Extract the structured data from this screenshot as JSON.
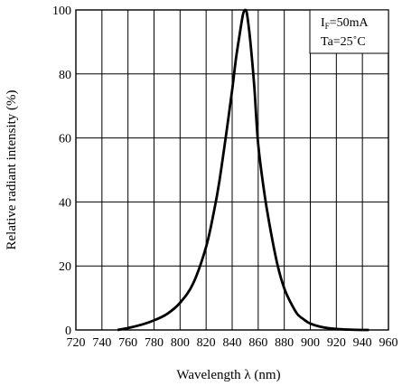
{
  "chart_data": {
    "type": "line",
    "title": "",
    "xlabel": "Wavelength  λ  (nm)",
    "ylabel": "Relative radiant intensity (%)",
    "xlim": [
      720,
      960
    ],
    "ylim": [
      0,
      100
    ],
    "x_ticks": [
      720,
      740,
      760,
      780,
      800,
      820,
      840,
      860,
      880,
      900,
      920,
      940,
      960
    ],
    "y_ticks": [
      0,
      20,
      40,
      60,
      80,
      100
    ],
    "grid": true,
    "legend": {
      "placement": "top-right",
      "line1_main": "I",
      "line1_sub": "F",
      "line1_rest": "=50mA",
      "line2": "Ta=25˚C"
    },
    "series": [
      {
        "x": [
          752,
          760,
          770,
          780,
          790,
          800,
          810,
          820,
          826,
          830,
          835,
          840,
          843,
          846,
          848,
          849,
          850,
          851,
          852,
          854,
          857,
          860,
          865,
          870,
          875,
          880,
          885,
          890,
          895,
          900,
          910,
          920,
          930,
          940,
          945
        ],
        "y": [
          0,
          0.6,
          1.6,
          3,
          5,
          8.5,
          14.5,
          26,
          37,
          46,
          60,
          75,
          85,
          93,
          98,
          99.5,
          100,
          99.5,
          97,
          90,
          76,
          58,
          42,
          30,
          20,
          13,
          8.5,
          5,
          3.3,
          2,
          0.8,
          0.3,
          0.1,
          0,
          0
        ]
      }
    ]
  }
}
